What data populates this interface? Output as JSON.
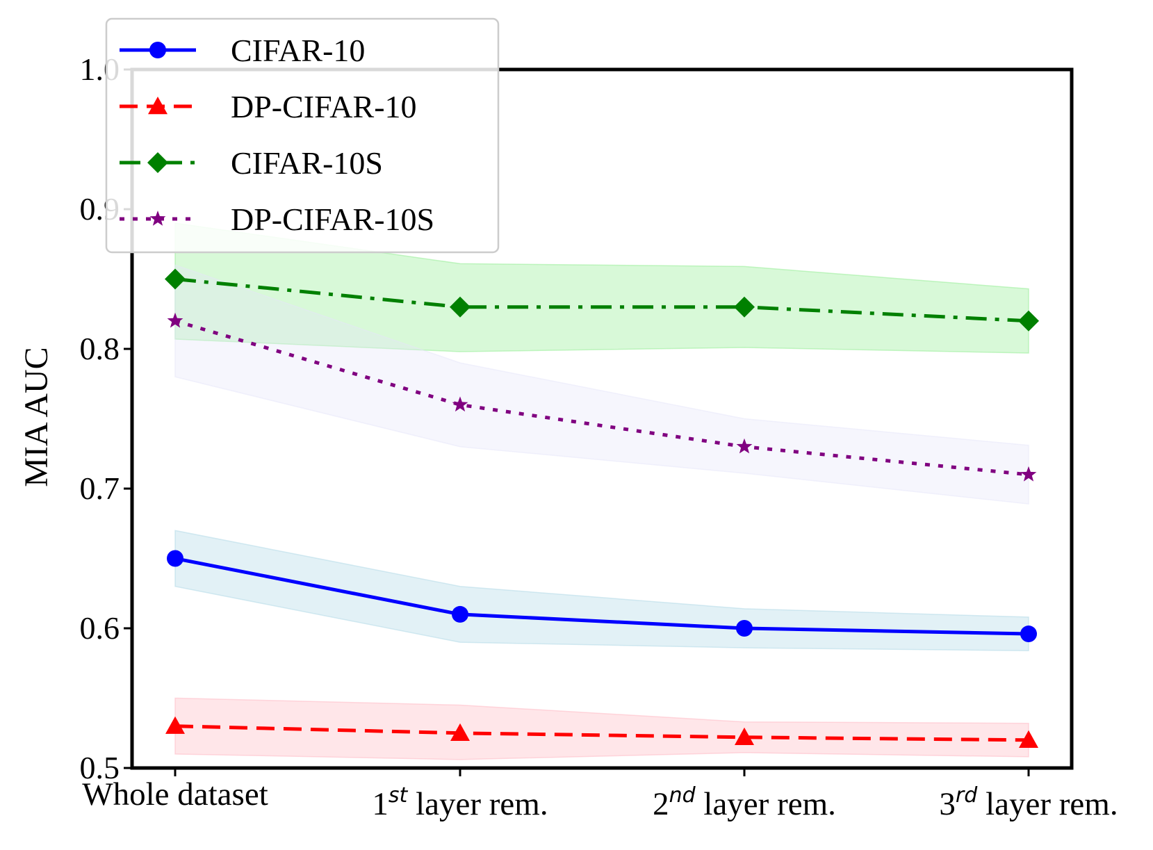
{
  "chart_data": {
    "type": "line",
    "title": "",
    "xlabel": "",
    "ylabel": "MIA AUC",
    "ylim": [
      0.5,
      1.0
    ],
    "yticks": [
      "0.5",
      "0.6",
      "0.7",
      "0.8",
      "0.9",
      "1.0"
    ],
    "categories": [
      {
        "base": "Whole dataset",
        "num": "",
        "sup": "",
        "rest": ""
      },
      {
        "base": "",
        "num": "1",
        "sup": "st",
        "rest": " layer rem."
      },
      {
        "base": "",
        "num": "2",
        "sup": "nd",
        "rest": " layer rem."
      },
      {
        "base": "",
        "num": "3",
        "sup": "rd",
        "rest": " layer rem."
      }
    ],
    "legend_position": "top-left",
    "series": [
      {
        "name": "CIFAR-10",
        "color": "#0000ff",
        "fill": "#add8e6",
        "marker": "circle",
        "linestyle": "solid",
        "values": [
          0.65,
          0.61,
          0.6,
          0.596
        ],
        "lower": [
          0.63,
          0.59,
          0.586,
          0.584
        ],
        "upper": [
          0.67,
          0.63,
          0.614,
          0.608
        ]
      },
      {
        "name": "DP-CIFAR-10",
        "color": "#ff0000",
        "fill": "#ffb6c1",
        "marker": "triangle",
        "linestyle": "dashed",
        "values": [
          0.53,
          0.525,
          0.522,
          0.52
        ],
        "lower": [
          0.51,
          0.506,
          0.511,
          0.508
        ],
        "upper": [
          0.55,
          0.545,
          0.533,
          0.532
        ]
      },
      {
        "name": "CIFAR-10S",
        "color": "#008000",
        "fill": "#90ee90",
        "marker": "diamond",
        "linestyle": "dashdot",
        "values": [
          0.85,
          0.83,
          0.83,
          0.82
        ],
        "lower": [
          0.807,
          0.798,
          0.801,
          0.797
        ],
        "upper": [
          0.89,
          0.861,
          0.859,
          0.843
        ]
      },
      {
        "name": "DP-CIFAR-10S",
        "color": "#800080",
        "fill": "#e6e6fa",
        "marker": "star",
        "linestyle": "dotted",
        "values": [
          0.82,
          0.76,
          0.73,
          0.71
        ],
        "lower": [
          0.78,
          0.73,
          0.711,
          0.689
        ],
        "upper": [
          0.86,
          0.79,
          0.75,
          0.731
        ]
      }
    ]
  }
}
